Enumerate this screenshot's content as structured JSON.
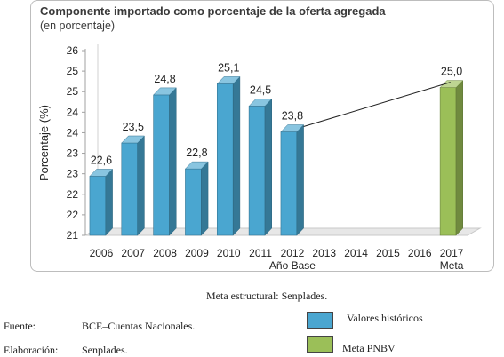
{
  "title": "Componente importado como porcentaje de la oferta agregada",
  "subtitle": "(en porcentaje)",
  "chart_data": {
    "type": "bar",
    "ylabel": "Porcentaje (%)",
    "ylim": [
      21,
      26
    ],
    "y_ticks": [
      "21",
      "22",
      "22",
      "23",
      "23",
      "24",
      "24",
      "25",
      "25",
      "26"
    ],
    "categories": [
      "2006",
      "2007",
      "2008",
      "2009",
      "2010",
      "2011",
      "2012",
      "2013",
      "2014",
      "2015",
      "2016",
      "2017"
    ],
    "sub_labels": {
      "2012": "Año Base",
      "2017": "Meta"
    },
    "series": [
      {
        "name": "Valores históricos",
        "color": "#4aa6d0",
        "values": [
          22.6,
          23.5,
          24.8,
          22.8,
          25.1,
          24.5,
          23.8,
          null,
          null,
          null,
          null,
          null
        ],
        "labels": [
          "22,6",
          "23,5",
          "24,8",
          "22,8",
          "25,1",
          "24,5",
          "23,8",
          "",
          "",
          "",
          "",
          ""
        ]
      },
      {
        "name": "Meta PNBV",
        "color": "#9bbf58",
        "values": [
          null,
          null,
          null,
          null,
          null,
          null,
          null,
          null,
          null,
          null,
          null,
          25.0
        ],
        "labels": [
          "",
          "",
          "",
          "",
          "",
          "",
          "",
          "",
          "",
          "",
          "",
          "25,0"
        ]
      }
    ],
    "trend_line": {
      "from": "2012",
      "to": "2017"
    },
    "grid": false
  },
  "caption": "Meta estructural: Senplades.",
  "source": {
    "label": "Fuente:",
    "value": "BCE–Cuentas Nacionales."
  },
  "elaboration": {
    "label": "Elaboración:",
    "value": "Senplades."
  },
  "legend": [
    {
      "label": "Valores históricos",
      "color": "#4aa6d0"
    },
    {
      "label": "Meta PNBV",
      "color": "#9bbf58"
    }
  ]
}
